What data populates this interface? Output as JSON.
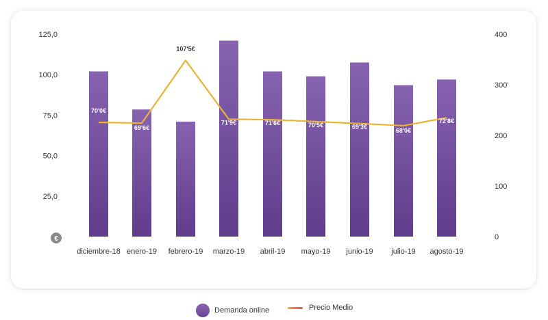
{
  "chart_data": {
    "type": "bar",
    "categories": [
      "diciembre-18",
      "enero-19",
      "febrero-19",
      "marzo-19",
      "abril-19",
      "mayo-19",
      "junio-19",
      "julio-19",
      "agosto-19"
    ],
    "series": [
      {
        "name": "Demanda online",
        "type": "bar",
        "axis": "left",
        "values": [
          102,
          78.5,
          71,
          121,
          102,
          99,
          107.5,
          93.5,
          97
        ]
      },
      {
        "name": "Precio Medio",
        "type": "line",
        "axis": "right",
        "values": [
          70.0,
          69.6,
          107.5,
          71.9,
          71.6,
          70.5,
          69.3,
          68.0,
          72.8
        ],
        "labels": [
          "70'0€",
          "69'6€",
          "107'5€",
          "71'9€",
          "71'6€",
          "70'5€",
          "69'3€",
          "68'0€",
          "72'8€"
        ]
      }
    ],
    "left_axis": {
      "ticks": [
        "125,0",
        "100,0",
        "75,0",
        "50,0",
        "25,0"
      ],
      "ylim": [
        0,
        125
      ]
    },
    "right_axis": {
      "ticks": [
        "400",
        "300'",
        "200",
        "100",
        "0"
      ],
      "ylim": [
        0,
        400
      ]
    },
    "currency_badge": "€",
    "colors": {
      "bar_top": "#8762b0",
      "bar_bottom": "#5f3d8c",
      "line": "#e9b334",
      "line_label": "#ffffff"
    },
    "legend": {
      "position": "bottom-center"
    }
  },
  "legend": {
    "bars_label": "Demanda online",
    "line_label": "Precio Medio"
  }
}
